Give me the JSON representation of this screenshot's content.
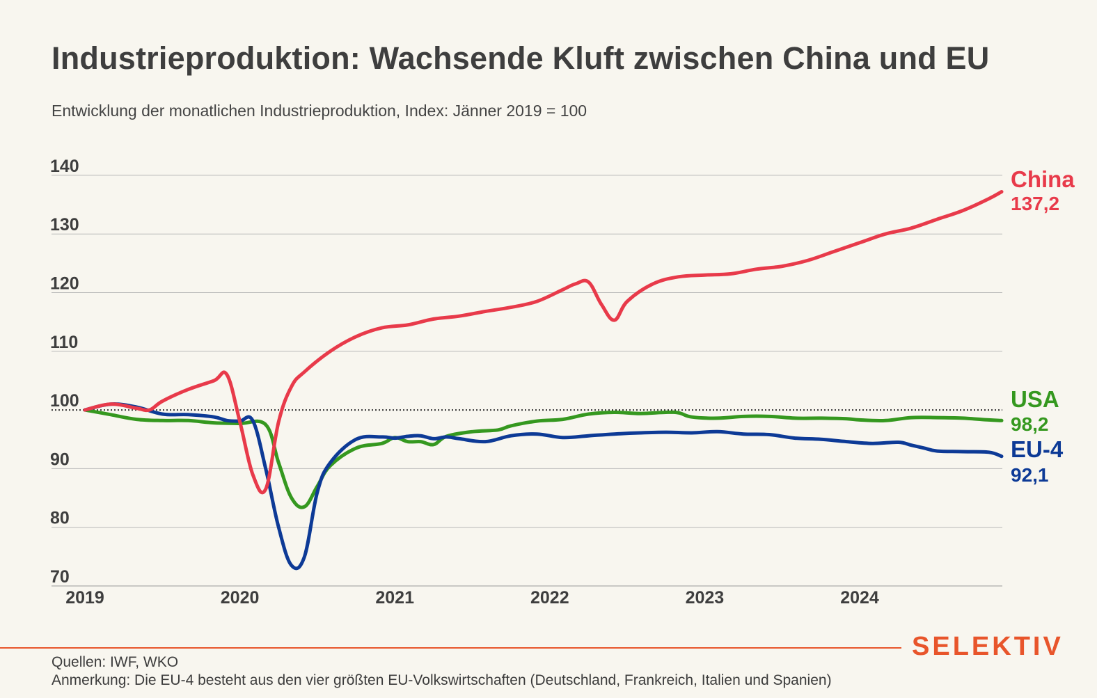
{
  "header": {
    "title": "Industrieproduktion: Wachsende Kluft zwischen China und EU",
    "subtitle": "Entwicklung der monatlichen Industrieproduktion, Index: Jänner 2019 = 100"
  },
  "footer": {
    "sources": "Quellen: IWF, WKO",
    "note": "Anmerkung: Die EU-4 besteht aus den vier größten EU-Volkswirtschaften (Deutschland, Frankreich, Italien und Spanien)",
    "brand": "SELEKTIV",
    "brand_color": "#e8552b"
  },
  "chart_data": {
    "type": "line",
    "x_ticks": [
      "2019",
      "2020",
      "2021",
      "2022",
      "2023",
      "2024"
    ],
    "y_ticks": [
      70,
      80,
      90,
      100,
      110,
      120,
      130,
      140
    ],
    "ylim": [
      70,
      140
    ],
    "xlim": [
      "2019-01",
      "2024-12"
    ],
    "reference_line": 100,
    "grid": "horizontal",
    "legend": "end-of-line labels",
    "series": [
      {
        "name": "China",
        "color": "#e83a4a",
        "end_label": "137,2",
        "x": [
          "2019-01",
          "2019-03",
          "2019-05",
          "2019-06",
          "2019-07",
          "2019-09",
          "2019-11",
          "2019-12",
          "2020-01",
          "2020-02",
          "2020-03",
          "2020-04",
          "2020-05",
          "2020-06",
          "2020-08",
          "2020-10",
          "2020-12",
          "2021-02",
          "2021-04",
          "2021-06",
          "2021-08",
          "2021-10",
          "2021-12",
          "2022-02",
          "2022-03",
          "2022-04",
          "2022-05",
          "2022-06",
          "2022-07",
          "2022-09",
          "2022-11",
          "2023-01",
          "2023-03",
          "2023-05",
          "2023-07",
          "2023-09",
          "2023-11",
          "2024-01",
          "2024-03",
          "2024-05",
          "2024-07",
          "2024-09",
          "2024-11",
          "2024-12"
        ],
        "values": [
          100,
          101,
          100.3,
          100,
          101.5,
          103.5,
          105,
          106,
          98,
          89,
          86.5,
          98,
          104,
          106.5,
          110,
          112.5,
          114,
          114.5,
          115.5,
          116,
          116.8,
          117.5,
          118.5,
          120.5,
          121.5,
          121.8,
          118,
          115.3,
          118.5,
          121.5,
          122.7,
          123,
          123.2,
          124,
          124.5,
          125.5,
          127,
          128.5,
          130,
          131,
          132.5,
          134,
          136,
          137.2
        ]
      },
      {
        "name": "USA",
        "color": "#35981f",
        "end_label": "98,2",
        "x": [
          "2019-01",
          "2019-03",
          "2019-05",
          "2019-07",
          "2019-09",
          "2019-11",
          "2020-01",
          "2020-03",
          "2020-04",
          "2020-05",
          "2020-06",
          "2020-07",
          "2020-08",
          "2020-10",
          "2020-12",
          "2021-01",
          "2021-02",
          "2021-03",
          "2021-04",
          "2021-05",
          "2021-07",
          "2021-09",
          "2021-10",
          "2021-12",
          "2022-02",
          "2022-04",
          "2022-06",
          "2022-08",
          "2022-10",
          "2022-11",
          "2022-12",
          "2023-02",
          "2023-04",
          "2023-06",
          "2023-08",
          "2023-10",
          "2023-12",
          "2024-01",
          "2024-03",
          "2024-05",
          "2024-07",
          "2024-09",
          "2024-11",
          "2024-12"
        ],
        "values": [
          100,
          99.2,
          98.4,
          98.2,
          98.2,
          97.8,
          97.7,
          97.5,
          91,
          85,
          83.5,
          87,
          90.5,
          93.5,
          94.3,
          95.3,
          94.6,
          94.6,
          94.1,
          95.5,
          96.3,
          96.6,
          97.3,
          98.1,
          98.4,
          99.3,
          99.6,
          99.4,
          99.6,
          99.5,
          98.8,
          98.6,
          98.9,
          98.9,
          98.6,
          98.6,
          98.5,
          98.3,
          98.2,
          98.7,
          98.7,
          98.6,
          98.3,
          98.2
        ]
      },
      {
        "name": "EU-4",
        "color": "#0d3a96",
        "end_label": "92,1",
        "x": [
          "2019-01",
          "2019-03",
          "2019-05",
          "2019-07",
          "2019-09",
          "2019-11",
          "2019-12",
          "2020-01",
          "2020-02",
          "2020-03",
          "2020-04",
          "2020-05",
          "2020-06",
          "2020-07",
          "2020-08",
          "2020-10",
          "2020-12",
          "2021-01",
          "2021-02",
          "2021-03",
          "2021-04",
          "2021-05",
          "2021-06",
          "2021-08",
          "2021-10",
          "2021-12",
          "2022-02",
          "2022-04",
          "2022-06",
          "2022-08",
          "2022-10",
          "2022-12",
          "2023-02",
          "2023-04",
          "2023-06",
          "2023-08",
          "2023-10",
          "2023-12",
          "2024-02",
          "2024-04",
          "2024-05",
          "2024-06",
          "2024-07",
          "2024-09",
          "2024-11",
          "2024-12"
        ],
        "values": [
          100,
          101,
          100.5,
          99.3,
          99.2,
          98.8,
          98.2,
          98.1,
          98.2,
          90,
          80,
          73.5,
          75,
          86,
          91,
          95,
          95.4,
          95.2,
          95.5,
          95.6,
          95.1,
          95.4,
          95.1,
          94.6,
          95.6,
          95.9,
          95.3,
          95.6,
          95.9,
          96.1,
          96.2,
          96.1,
          96.3,
          95.9,
          95.8,
          95.2,
          95,
          94.6,
          94.3,
          94.5,
          94,
          93.5,
          93,
          92.9,
          92.8,
          92.1
        ]
      }
    ]
  }
}
